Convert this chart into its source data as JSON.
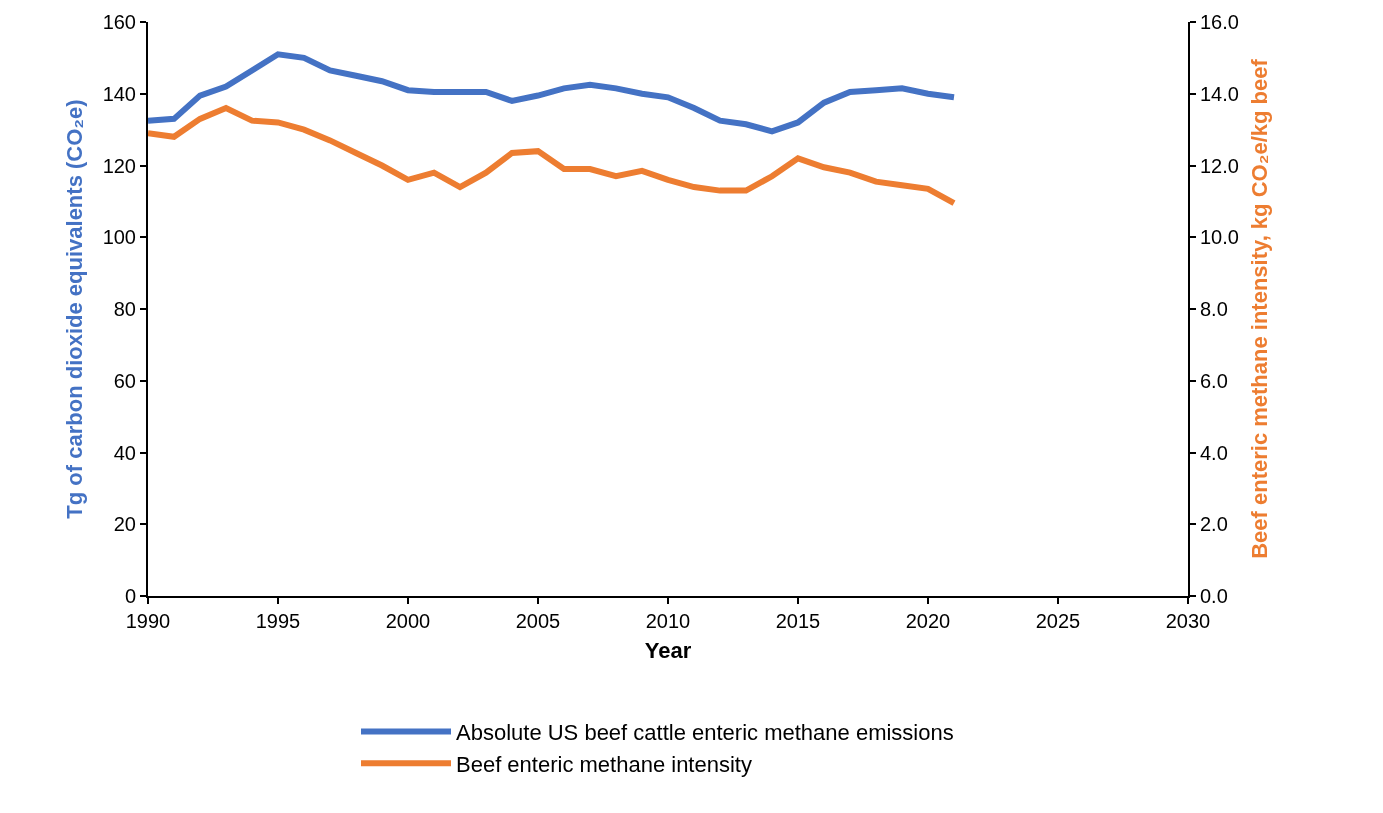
{
  "chart_data": {
    "type": "line",
    "xlabel": "Year",
    "ylabel": "Tg of carbon dioxide equivalents (CO₂e)",
    "y2label": "Beef enteric methane intensity, kg CO₂e/kg beef",
    "x": [
      1990,
      1991,
      1992,
      1993,
      1994,
      1995,
      1996,
      1997,
      1998,
      1999,
      2000,
      2001,
      2002,
      2003,
      2004,
      2005,
      2006,
      2007,
      2008,
      2009,
      2010,
      2011,
      2012,
      2013,
      2014,
      2015,
      2016,
      2017,
      2018,
      2019,
      2020,
      2021
    ],
    "series": [
      {
        "name": "Absolute US beef cattle enteric methane emissions",
        "color": "#4472c4",
        "values": [
          132.5,
          133,
          139.5,
          142,
          146.5,
          151,
          150,
          146.5,
          145,
          143.5,
          141,
          140.5,
          140.5,
          140.5,
          138,
          139.5,
          141.5,
          142.5,
          141.5,
          140,
          139,
          136,
          132.5,
          131.5,
          129.5,
          132,
          137.5,
          140.5,
          141,
          141.5,
          140,
          139
        ]
      },
      {
        "name": "Beef enteric methane intensity",
        "color": "#ed7d31",
        "axis": "y2",
        "values": [
          12.9,
          12.8,
          13.3,
          13.6,
          13.25,
          13.2,
          13.0,
          12.7,
          12.35,
          12.0,
          11.6,
          11.8,
          11.4,
          11.8,
          12.35,
          12.4,
          11.9,
          11.9,
          11.7,
          11.85,
          11.6,
          11.4,
          11.3,
          11.3,
          11.7,
          12.2,
          11.95,
          11.8,
          11.55,
          11.45,
          11.35,
          10.95
        ]
      }
    ],
    "xlim": [
      1990,
      2030
    ],
    "xticks": [
      1990,
      1995,
      2000,
      2005,
      2010,
      2015,
      2020,
      2025,
      2030
    ],
    "ylim": [
      0,
      160
    ],
    "yticks": [
      0,
      20,
      40,
      60,
      80,
      100,
      120,
      140,
      160
    ],
    "y2lim": [
      0,
      16
    ],
    "y2ticks": [
      {
        "value": 0,
        "label": "0.0"
      },
      {
        "value": 2,
        "label": "2.0"
      },
      {
        "value": 4,
        "label": "4.0"
      },
      {
        "value": 6,
        "label": "6.0"
      },
      {
        "value": 8,
        "label": "8.0"
      },
      {
        "value": 10,
        "label": "10.0"
      },
      {
        "value": 12,
        "label": "12.0"
      },
      {
        "value": 14,
        "label": "14.0"
      },
      {
        "value": 16,
        "label": "16.0"
      }
    ],
    "grid": false,
    "legend": "bottom",
    "marker": "none",
    "line_style": "solid"
  }
}
